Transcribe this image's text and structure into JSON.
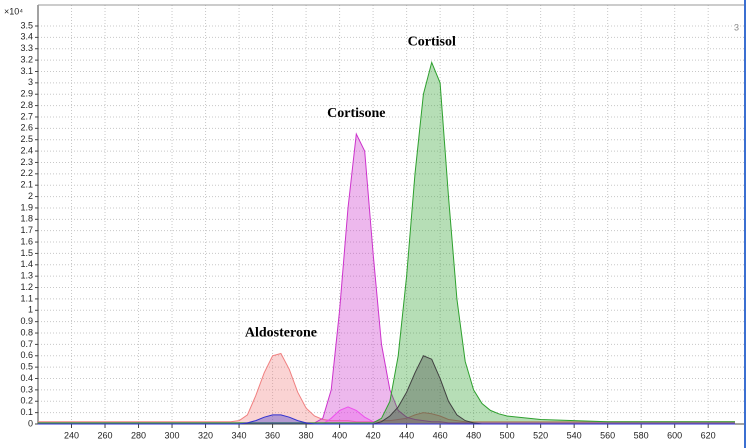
{
  "chart_data": {
    "type": "area",
    "y_scale_label": "×10⁴",
    "corner_label": "3",
    "x": [
      220,
      240,
      260,
      280,
      300,
      320,
      330,
      335,
      340,
      345,
      350,
      355,
      360,
      365,
      370,
      375,
      380,
      385,
      390,
      395,
      400,
      405,
      410,
      415,
      420,
      425,
      430,
      435,
      440,
      445,
      450,
      455,
      460,
      465,
      470,
      475,
      480,
      485,
      490,
      495,
      500,
      520,
      540,
      560,
      580,
      600,
      620,
      636
    ],
    "series": [
      {
        "name": "Aldosterone",
        "color": "#f08080",
        "values": [
          0.02,
          0.02,
          0.02,
          0.02,
          0.02,
          0.02,
          0.02,
          0.02,
          0.03,
          0.08,
          0.25,
          0.45,
          0.6,
          0.62,
          0.48,
          0.28,
          0.14,
          0.07,
          0.04,
          0.03,
          0.03,
          0.03,
          0.02,
          0.02,
          0.02,
          0.03,
          0.03,
          0.04,
          0.05,
          0.08,
          0.1,
          0.09,
          0.07,
          0.04,
          0.03,
          0.02,
          0.02,
          0.02,
          0.02,
          0.02,
          0.02,
          0.02,
          0.02,
          0.02,
          0.02,
          0.02,
          0.02,
          0.02
        ]
      },
      {
        "color": "#ff60ff",
        "values": [
          0,
          0,
          0,
          0,
          0,
          0,
          0,
          0,
          0,
          0,
          0,
          0,
          0,
          0,
          0,
          0,
          0,
          0,
          0,
          0.05,
          0.12,
          0.15,
          0.12,
          0.06,
          0.02,
          0,
          0,
          0,
          0,
          0,
          0,
          0,
          0,
          0,
          0,
          0,
          0,
          0,
          0,
          0,
          0,
          0,
          0,
          0,
          0,
          0,
          0,
          0
        ]
      },
      {
        "name": "Cortisone",
        "color": "#cc33cc",
        "values": [
          0.01,
          0.01,
          0.01,
          0.01,
          0.01,
          0.01,
          0.01,
          0.01,
          0.01,
          0.01,
          0.01,
          0.01,
          0.01,
          0.01,
          0.01,
          0.01,
          0.01,
          0.01,
          0.05,
          0.3,
          1.0,
          1.9,
          2.55,
          2.4,
          1.5,
          0.7,
          0.3,
          0.12,
          0.06,
          0.04,
          0.03,
          0.02,
          0.02,
          0.01,
          0.01,
          0.01,
          0.01,
          0.01,
          0.01,
          0.01,
          0.01,
          0.01,
          0.01,
          0.01,
          0.01,
          0.01,
          0.01,
          0.01
        ]
      },
      {
        "name": "Cortisol",
        "color": "#2ea02e",
        "values": [
          0.01,
          0.01,
          0.01,
          0.01,
          0.01,
          0.01,
          0.01,
          0.01,
          0.01,
          0.01,
          0.01,
          0.01,
          0.01,
          0.01,
          0.01,
          0.01,
          0.01,
          0.01,
          0.01,
          0.01,
          0.01,
          0.01,
          0.01,
          0.01,
          0.01,
          0.05,
          0.2,
          0.6,
          1.3,
          2.2,
          2.9,
          3.18,
          3.0,
          2.0,
          1.1,
          0.55,
          0.3,
          0.18,
          0.12,
          0.09,
          0.07,
          0.04,
          0.03,
          0.02,
          0.02,
          0.02,
          0.02,
          0.02
        ]
      },
      {
        "color": "#404040",
        "values": [
          0,
          0,
          0,
          0,
          0,
          0,
          0,
          0,
          0,
          0,
          0,
          0,
          0,
          0,
          0,
          0,
          0,
          0,
          0,
          0,
          0,
          0,
          0,
          0,
          0,
          0.02,
          0.07,
          0.15,
          0.28,
          0.45,
          0.6,
          0.57,
          0.4,
          0.2,
          0.08,
          0.03,
          0.01,
          0,
          0,
          0,
          0,
          0,
          0,
          0,
          0,
          0,
          0,
          0
        ]
      },
      {
        "color": "#3030d0",
        "values": [
          0,
          0,
          0,
          0,
          0,
          0,
          0,
          0,
          0,
          0.01,
          0.03,
          0.06,
          0.08,
          0.08,
          0.06,
          0.03,
          0.01,
          0,
          0,
          0,
          0,
          0,
          0,
          0,
          0,
          0,
          0,
          0,
          0,
          0,
          0,
          0,
          0,
          0,
          0,
          0,
          0,
          0,
          0,
          0,
          0,
          0,
          0,
          0,
          0,
          0,
          0,
          0
        ]
      }
    ],
    "xlim": [
      220,
      636
    ],
    "ylim": [
      0,
      3.5
    ],
    "xticks": [
      240,
      260,
      280,
      300,
      320,
      340,
      360,
      380,
      400,
      420,
      440,
      460,
      480,
      500,
      520,
      540,
      560,
      580,
      600,
      620
    ],
    "yticks": [
      0,
      0.1,
      0.2,
      0.3,
      0.4,
      0.5,
      0.6,
      0.7,
      0.8,
      0.9,
      1,
      1.1,
      1.2,
      1.3,
      1.4,
      1.5,
      1.6,
      1.7,
      1.8,
      1.9,
      2,
      2.1,
      2.2,
      2.3,
      2.4,
      2.5,
      2.6,
      2.7,
      2.8,
      2.9,
      3,
      3.1,
      3.2,
      3.3,
      3.4,
      3.5
    ],
    "grid": true
  }
}
